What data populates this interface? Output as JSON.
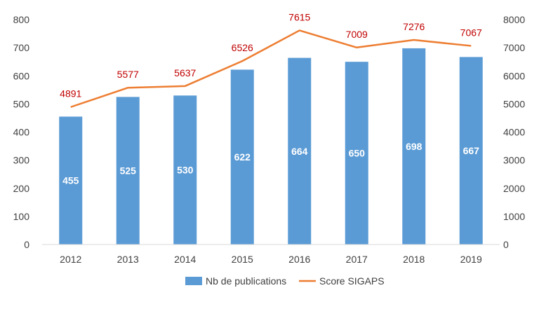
{
  "chart_data": {
    "type": "bar",
    "categories": [
      "2012",
      "2013",
      "2014",
      "2015",
      "2016",
      "2017",
      "2018",
      "2019"
    ],
    "series": [
      {
        "name": "Nb de publications",
        "type": "bar",
        "axis": "left",
        "color": "#5b9bd5",
        "values": [
          455,
          525,
          530,
          622,
          664,
          650,
          698,
          667
        ]
      },
      {
        "name": "Score SIGAPS",
        "type": "line",
        "axis": "right",
        "color": "#ed7d31",
        "values": [
          4891,
          5577,
          5637,
          6526,
          7615,
          7009,
          7276,
          7067
        ]
      }
    ],
    "y_left": {
      "range": [
        0,
        800
      ],
      "ticks": [
        0,
        100,
        200,
        300,
        400,
        500,
        600,
        700,
        800
      ]
    },
    "y_right": {
      "range": [
        0,
        8000
      ],
      "ticks": [
        0,
        1000,
        2000,
        3000,
        4000,
        5000,
        6000,
        7000,
        8000
      ]
    },
    "data_label_colors": {
      "bar": "#ffffff",
      "line": "#c00000"
    },
    "grid": false,
    "legend": "bottom"
  }
}
